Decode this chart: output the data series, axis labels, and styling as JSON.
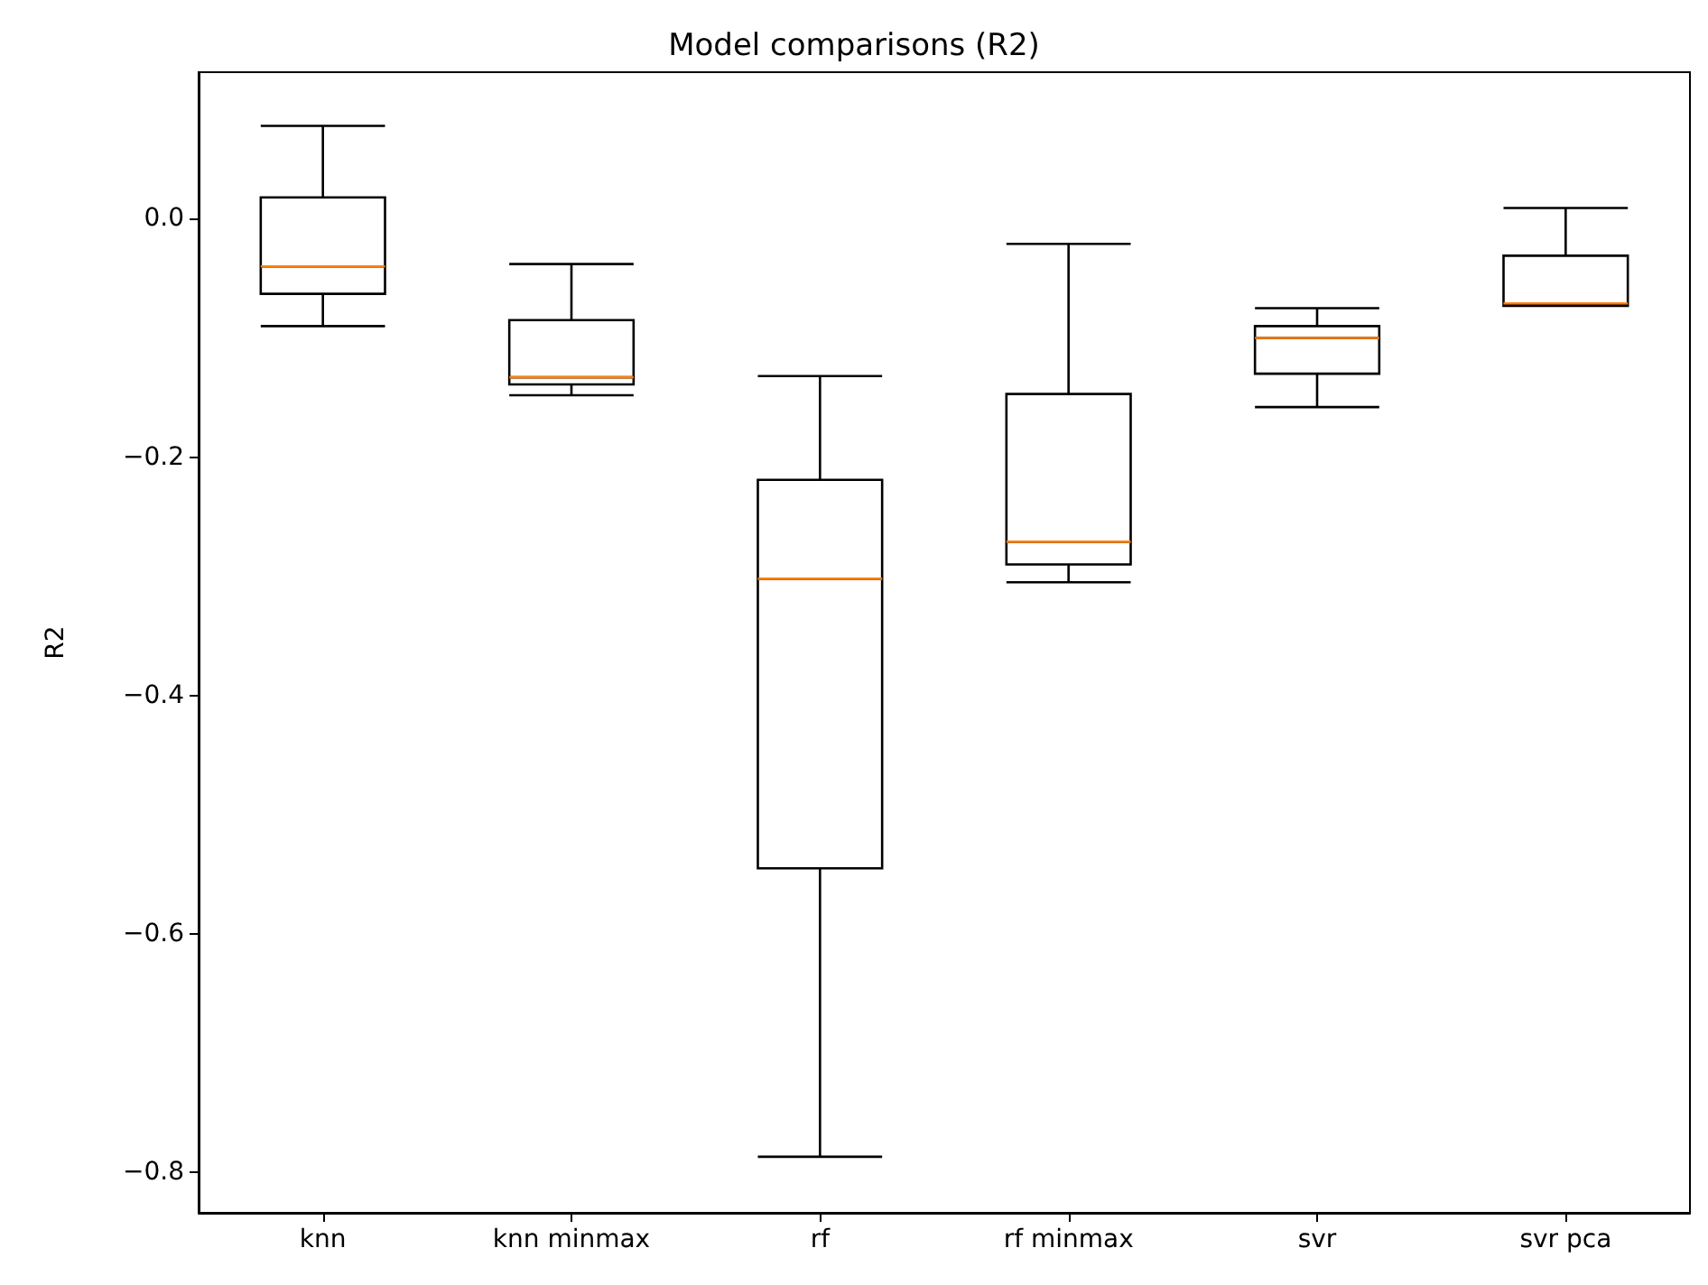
{
  "chart_data": {
    "type": "box",
    "title": "Model comparisons (R2)",
    "ylabel": "R2",
    "categories": [
      "knn",
      "knn minmax",
      "rf",
      "rf minmax",
      "svr",
      "svr pca"
    ],
    "series": [
      {
        "color": "#000000",
        "boxes": [
          {
            "low": -0.09,
            "q1": -0.063,
            "median": -0.04,
            "q3": 0.018,
            "high": 0.078
          },
          {
            "low": -0.148,
            "q1": -0.139,
            "median": -0.133,
            "q3": -0.085,
            "high": -0.038
          },
          {
            "low": -0.787,
            "q1": -0.545,
            "median": -0.302,
            "q3": -0.219,
            "high": -0.132
          },
          {
            "low": -0.305,
            "q1": -0.29,
            "median": -0.271,
            "q3": -0.147,
            "high": -0.021
          },
          {
            "low": -0.158,
            "q1": -0.13,
            "median": -0.1,
            "q3": -0.09,
            "high": -0.075
          },
          {
            "low": -0.073,
            "q1": -0.073,
            "median": -0.071,
            "q3": -0.031,
            "high": 0.009
          }
        ]
      }
    ],
    "ylim": [
      -0.834,
      0.123
    ],
    "yticks": [
      {
        "value": -0.8,
        "label": "−0.8"
      },
      {
        "value": -0.6,
        "label": "−0.6"
      },
      {
        "value": -0.4,
        "label": "−0.4"
      },
      {
        "value": -0.2,
        "label": "−0.2"
      },
      {
        "value": 0,
        "label": "0.0"
      }
    ],
    "grid": false
  }
}
